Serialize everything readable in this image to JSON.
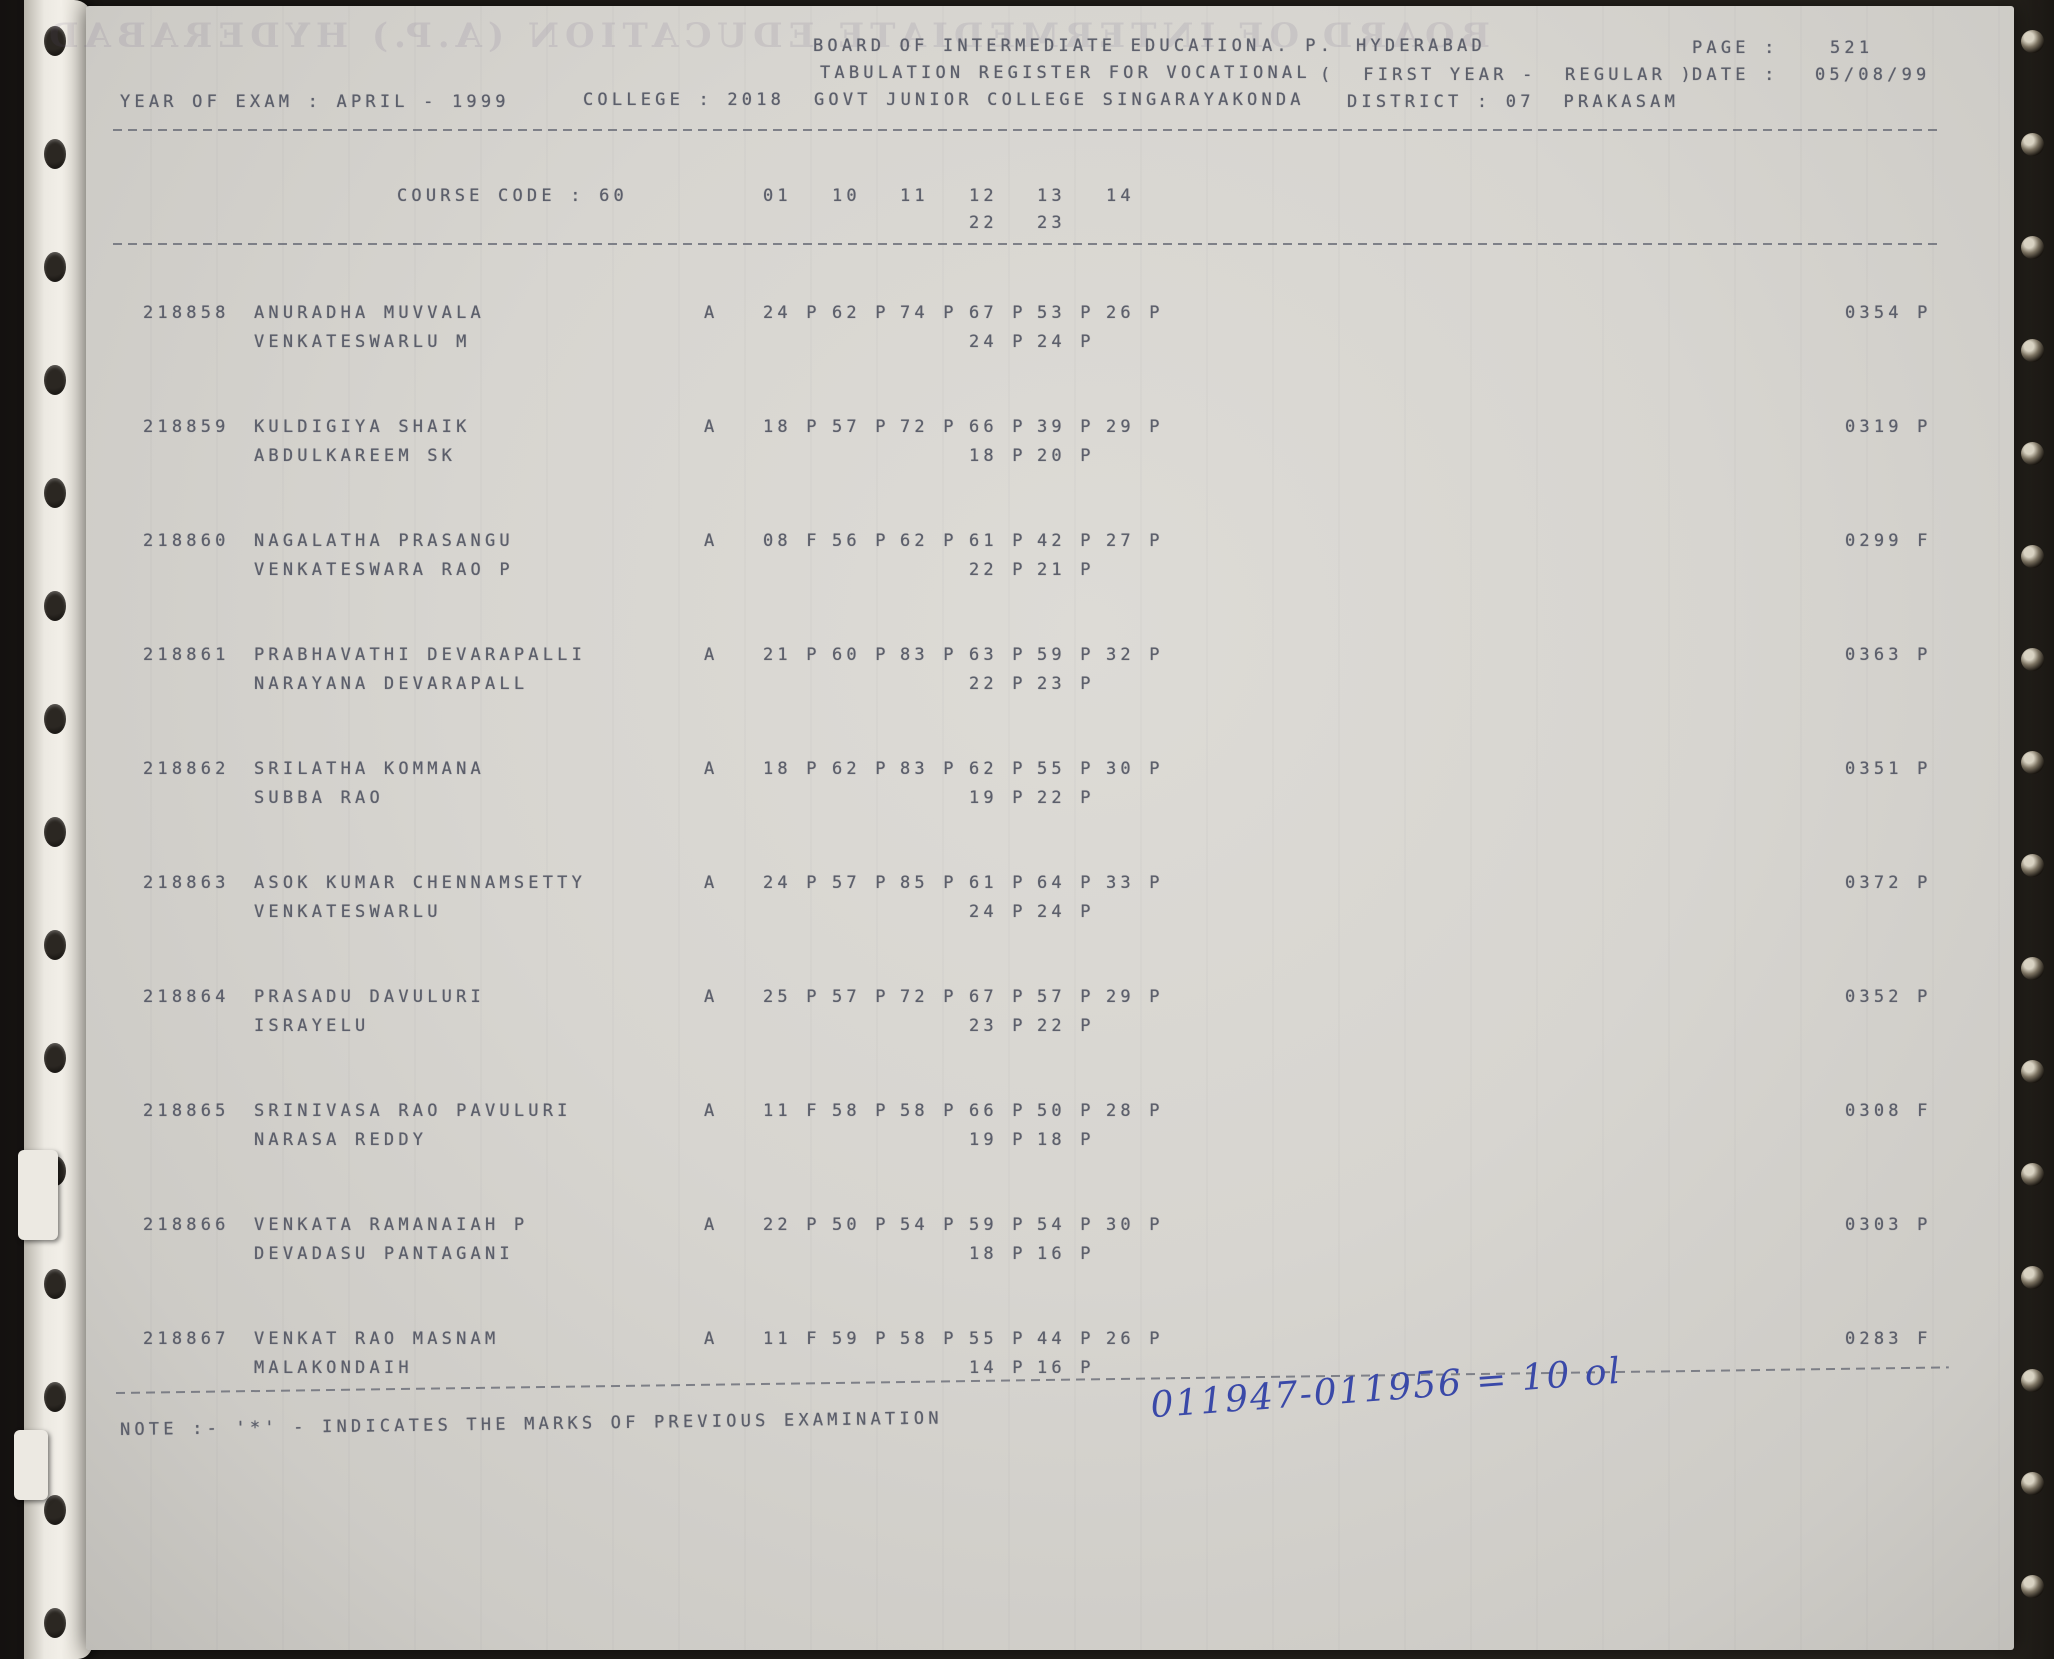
{
  "colors": {
    "paper": "#d7d5d0",
    "ink": "#5c5f6b",
    "handwriting_ink": "#3a49a8",
    "background": "#1c1916"
  },
  "ghost_showthrough": "BOARD OF INTERMEDIATE EDUCATION (A.P.) HYDERABAD",
  "header": {
    "org": "BOARD OF INTERMEDIATE EDUCATION",
    "org_state": "A. P.",
    "org_city": "HYDERABAD",
    "page_label": "PAGE :",
    "page_number": "521",
    "register_title": "TABULATION REGISTER FOR VOCATIONAL",
    "exam_group": "(  FIRST YEAR -",
    "exam_type": "REGULAR )",
    "date_label": "DATE :",
    "date_value": "05/08/99",
    "exam_year": "YEAR OF EXAM : APRIL - 1999",
    "college": "COLLEGE : 2018  GOVT JUNIOR COLLEGE SINGARAYAKONDA",
    "district": "DISTRICT : 07  PRAKASAM"
  },
  "course": {
    "label": "COURSE CODE : 60",
    "codes": [
      "01",
      "10",
      "11",
      "12",
      "13",
      "14"
    ],
    "codes_line2": [
      "22",
      "23"
    ]
  },
  "table": {
    "rows": [
      {
        "regno": "218858",
        "name": "ANURADHA MUVVALA",
        "parent": "VENKATESWARLU M",
        "attendance": "A",
        "marks": [
          "24 P",
          "62 P",
          "74 P",
          "67 P",
          "53 P",
          "26 P"
        ],
        "marks2": [
          "24 P",
          "24 P"
        ],
        "total": "0354 P"
      },
      {
        "regno": "218859",
        "name": "KULDIGIYA SHAIK",
        "parent": "ABDULKAREEM SK",
        "attendance": "A",
        "marks": [
          "18 P",
          "57 P",
          "72 P",
          "66 P",
          "39 P",
          "29 P"
        ],
        "marks2": [
          "18 P",
          "20 P"
        ],
        "total": "0319 P"
      },
      {
        "regno": "218860",
        "name": "NAGALATHA PRASANGU",
        "parent": "VENKATESWARA RAO P",
        "attendance": "A",
        "marks": [
          "08 F",
          "56 P",
          "62 P",
          "61 P",
          "42 P",
          "27 P"
        ],
        "marks2": [
          "22 P",
          "21 P"
        ],
        "total": "0299 F"
      },
      {
        "regno": "218861",
        "name": "PRABHAVATHI DEVARAPALLI",
        "parent": "NARAYANA DEVARAPALL",
        "attendance": "A",
        "marks": [
          "21 P",
          "60 P",
          "83 P",
          "63 P",
          "59 P",
          "32 P"
        ],
        "marks2": [
          "22 P",
          "23 P"
        ],
        "total": "0363 P"
      },
      {
        "regno": "218862",
        "name": "SRILATHA KOMMANA",
        "parent": "SUBBA RAO",
        "attendance": "A",
        "marks": [
          "18 P",
          "62 P",
          "83 P",
          "62 P",
          "55 P",
          "30 P"
        ],
        "marks2": [
          "19 P",
          "22 P"
        ],
        "total": "0351 P"
      },
      {
        "regno": "218863",
        "name": "ASOK KUMAR CHENNAMSETTY",
        "parent": "VENKATESWARLU",
        "attendance": "A",
        "marks": [
          "24 P",
          "57 P",
          "85 P",
          "61 P",
          "64 P",
          "33 P"
        ],
        "marks2": [
          "24 P",
          "24 P"
        ],
        "total": "0372 P"
      },
      {
        "regno": "218864",
        "name": "PRASADU DAVULURI",
        "parent": "ISRAYELU",
        "attendance": "A",
        "marks": [
          "25 P",
          "57 P",
          "72 P",
          "67 P",
          "57 P",
          "29 P"
        ],
        "marks2": [
          "23 P",
          "22 P"
        ],
        "total": "0352 P"
      },
      {
        "regno": "218865",
        "name": "SRINIVASA RAO PAVULURI",
        "parent": "NARASA REDDY",
        "attendance": "A",
        "marks": [
          "11 F",
          "58 P",
          "58 P",
          "66 P",
          "50 P",
          "28 P"
        ],
        "marks2": [
          "19 P",
          "18 P"
        ],
        "total": "0308 F"
      },
      {
        "regno": "218866",
        "name": "VENKATA RAMANAIAH P",
        "parent": "DEVADASU PANTAGANI",
        "attendance": "A",
        "marks": [
          "22 P",
          "50 P",
          "54 P",
          "59 P",
          "54 P",
          "30 P"
        ],
        "marks2": [
          "18 P",
          "16 P"
        ],
        "total": "0303 P"
      },
      {
        "regno": "218867",
        "name": "VENKAT RAO MASNAM",
        "parent": "MALAKONDAIH",
        "attendance": "A",
        "marks": [
          "11 F",
          "59 P",
          "58 P",
          "55 P",
          "44 P",
          "26 P"
        ],
        "marks2": [
          "14 P",
          "16 P"
        ],
        "total": "0283 F"
      }
    ]
  },
  "footer": {
    "note": "NOTE :- '*' - INDICATES THE MARKS OF PREVIOUS EXAMINATION",
    "handwriting": "011947-011956 = 10 ol"
  }
}
